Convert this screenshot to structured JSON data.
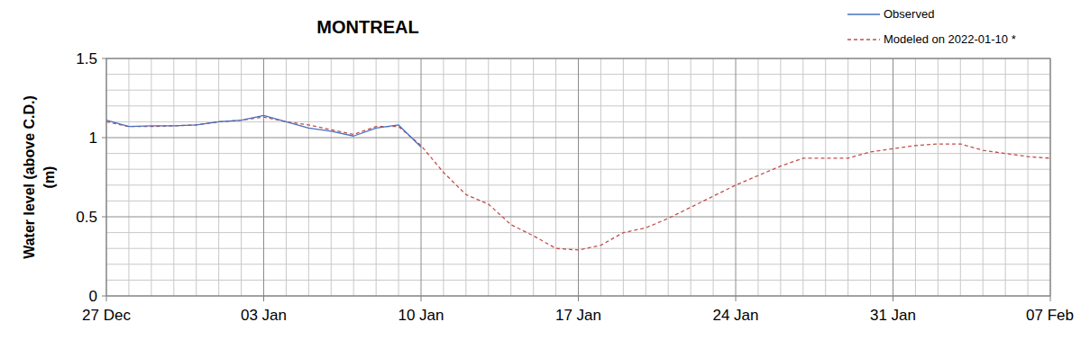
{
  "chart_data": {
    "type": "line",
    "title": "MONTREAL",
    "y_label": "Water level (above C.D.) (m)",
    "x": [
      0,
      1,
      2,
      3,
      4,
      5,
      6,
      7,
      8,
      9,
      10,
      11,
      12,
      13,
      14,
      15,
      16,
      17,
      18,
      19,
      20,
      21,
      22,
      23,
      24,
      25,
      26,
      27,
      28,
      29,
      30,
      31,
      32,
      33,
      34,
      35,
      36,
      37,
      38,
      39,
      40,
      41,
      42
    ],
    "xlim": [
      0,
      42
    ],
    "xticks": [
      {
        "value": 0,
        "label": "27 Dec"
      },
      {
        "value": 7,
        "label": "03 Jan"
      },
      {
        "value": 14,
        "label": "10 Jan"
      },
      {
        "value": 21,
        "label": "17 Jan"
      },
      {
        "value": 28,
        "label": "24 Jan"
      },
      {
        "value": 35,
        "label": "31 Jan"
      },
      {
        "value": 42,
        "label": "07 Feb"
      }
    ],
    "ylim": [
      0,
      1.5
    ],
    "yticks": [
      0,
      0.5,
      1,
      1.5
    ],
    "grid": true,
    "legend": "upper right",
    "series": [
      {
        "name": "Observed",
        "color": "#4a6fc0",
        "line_style": "solid",
        "values": [
          1.11,
          1.07,
          1.075,
          1.075,
          1.08,
          1.1,
          1.11,
          1.14,
          1.1,
          1.06,
          1.04,
          1.01,
          1.06,
          1.08,
          0.94,
          null,
          null,
          null,
          null,
          null,
          null,
          null,
          null,
          null,
          null,
          null,
          null,
          null,
          null,
          null,
          null,
          null,
          null,
          null,
          null,
          null,
          null,
          null,
          null,
          null,
          null,
          null,
          null
        ]
      },
      {
        "name": "Modeled on 2022-01-10 *",
        "color": "#c0504d",
        "line_style": "dashed",
        "values": [
          1.1,
          1.07,
          1.07,
          1.075,
          1.08,
          1.1,
          1.11,
          1.13,
          1.1,
          1.08,
          1.05,
          1.02,
          1.07,
          1.07,
          0.95,
          0.78,
          0.64,
          0.58,
          0.45,
          0.38,
          0.3,
          0.29,
          0.32,
          0.4,
          0.43,
          0.49,
          0.56,
          0.63,
          0.7,
          0.76,
          0.82,
          0.87,
          0.87,
          0.87,
          0.91,
          0.93,
          0.95,
          0.96,
          0.96,
          0.92,
          0.9,
          0.88,
          0.87
        ]
      }
    ]
  }
}
